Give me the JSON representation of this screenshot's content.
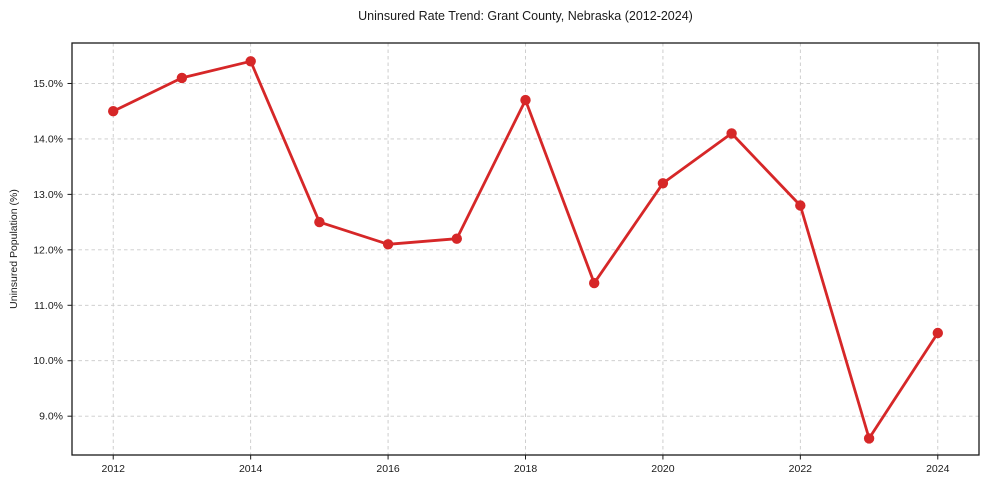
{
  "page": {
    "background": "#ffffff"
  },
  "chart_data": {
    "type": "line",
    "title": "Uninsured Rate Trend: Grant County, Nebraska (2012-2024)",
    "xlabel": "",
    "ylabel": "Uninsured Population (%)",
    "x": [
      2012,
      2013,
      2014,
      2015,
      2016,
      2017,
      2018,
      2019,
      2020,
      2021,
      2022,
      2023,
      2024
    ],
    "values": [
      14.5,
      15.1,
      15.4,
      12.5,
      12.1,
      12.2,
      14.7,
      11.4,
      13.2,
      14.1,
      12.8,
      8.6,
      10.5
    ],
    "xticks": [
      2012,
      2014,
      2016,
      2018,
      2020,
      2022,
      2024
    ],
    "yticks": [
      9.0,
      10.0,
      11.0,
      12.0,
      13.0,
      14.0,
      15.0
    ],
    "ytick_suffix": "%",
    "xlim": [
      2011.4,
      2024.6
    ],
    "ylim": [
      8.3,
      15.73
    ],
    "grid": true,
    "grid_style": "dashed",
    "legend": "none",
    "line_color": "#d62728",
    "marker": "circle",
    "grid_color": "#c9c9c9",
    "spine_color": "#1a1a1a",
    "text_color": "#1a1a1a"
  }
}
